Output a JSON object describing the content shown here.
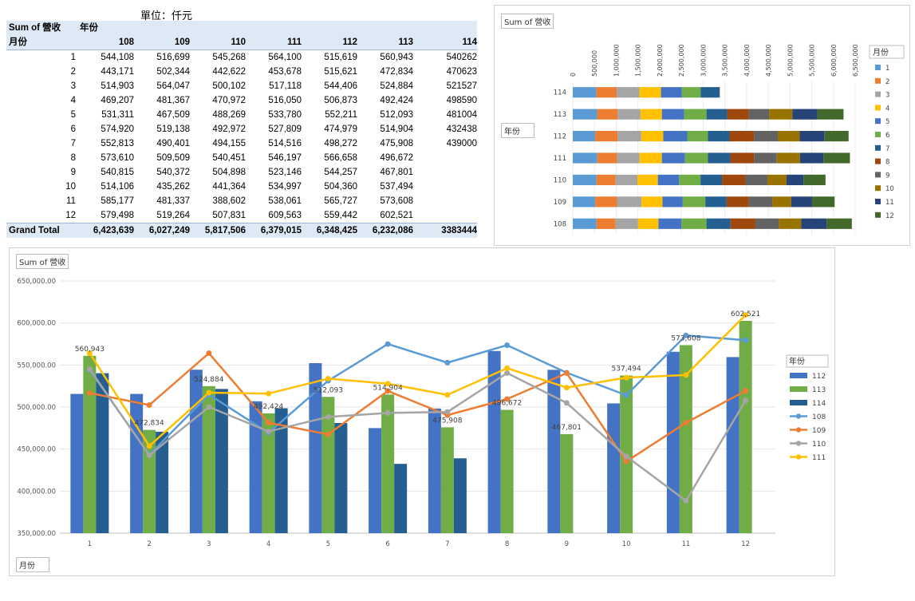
{
  "unit_label": "單位：仟元",
  "pivot": {
    "corner": "Sum of 營收",
    "col_field": "年份",
    "row_field": "月份",
    "years": [
      "108",
      "109",
      "110",
      "111",
      "112",
      "113",
      "114"
    ],
    "rows": [
      {
        "month": "1",
        "values": [
          "544,108",
          "516,699",
          "545,268",
          "564,100",
          "515,619",
          "560,943",
          "540262"
        ]
      },
      {
        "month": "2",
        "values": [
          "443,171",
          "502,344",
          "442,622",
          "453,678",
          "515,621",
          "472,834",
          "470623"
        ]
      },
      {
        "month": "3",
        "values": [
          "514,903",
          "564,047",
          "500,102",
          "517,118",
          "544,406",
          "524,884",
          "521527"
        ]
      },
      {
        "month": "4",
        "values": [
          "469,207",
          "481,367",
          "470,972",
          "516,050",
          "506,873",
          "492,424",
          "498590"
        ]
      },
      {
        "month": "5",
        "values": [
          "531,311",
          "467,509",
          "488,269",
          "533,780",
          "552,211",
          "512,093",
          "481004"
        ]
      },
      {
        "month": "6",
        "values": [
          "574,920",
          "519,138",
          "492,972",
          "527,809",
          "474,979",
          "514,904",
          "432438"
        ]
      },
      {
        "month": "7",
        "values": [
          "552,813",
          "490,401",
          "494,155",
          "514,516",
          "498,272",
          "475,908",
          "439000"
        ]
      },
      {
        "month": "8",
        "values": [
          "573,610",
          "509,509",
          "540,451",
          "546,197",
          "566,658",
          "496,672",
          ""
        ]
      },
      {
        "month": "9",
        "values": [
          "540,815",
          "540,372",
          "504,898",
          "523,146",
          "544,257",
          "467,801",
          ""
        ]
      },
      {
        "month": "10",
        "values": [
          "514,106",
          "435,262",
          "441,364",
          "534,997",
          "504,360",
          "537,494",
          ""
        ]
      },
      {
        "month": "11",
        "values": [
          "585,177",
          "481,337",
          "388,602",
          "538,061",
          "565,727",
          "573,608",
          ""
        ]
      },
      {
        "month": "12",
        "values": [
          "579,498",
          "519,264",
          "507,831",
          "609,563",
          "559,442",
          "602,521",
          ""
        ]
      }
    ],
    "grand_total_label": "Grand Total",
    "grand_total": [
      "6,423,639",
      "6,027,249",
      "5,817,506",
      "6,379,015",
      "6,348,425",
      "6,232,086",
      "3383444"
    ]
  },
  "chart_data": [
    {
      "type": "bar",
      "orientation": "horizontal",
      "stacked": true,
      "title_tag": "Sum of 營收",
      "axis_field_tag": "年份",
      "legend_title": "月份",
      "legend_position": "right",
      "categories": [
        "108",
        "109",
        "110",
        "111",
        "112",
        "113",
        "114"
      ],
      "xlim": [
        0,
        6500000
      ],
      "ticks": [
        "0",
        "500,000",
        "1,000,000",
        "1,500,000",
        "2,000,000",
        "2,500,000",
        "3,000,000",
        "3,500,000",
        "4,000,000",
        "4,500,000",
        "5,000,000",
        "5,500,000",
        "6,000,000",
        "6,500,000"
      ],
      "series": [
        {
          "name": "1",
          "color": "#5b9bd5",
          "values": [
            544108,
            516699,
            545268,
            564100,
            515619,
            560943,
            540262
          ]
        },
        {
          "name": "2",
          "color": "#ed7d31",
          "values": [
            443171,
            502344,
            442622,
            453678,
            515621,
            472834,
            470623
          ]
        },
        {
          "name": "3",
          "color": "#a5a5a5",
          "values": [
            514903,
            564047,
            500102,
            517118,
            544406,
            524884,
            521527
          ]
        },
        {
          "name": "4",
          "color": "#ffc000",
          "values": [
            469207,
            481367,
            470972,
            516050,
            506873,
            492424,
            498590
          ]
        },
        {
          "name": "5",
          "color": "#4472c4",
          "values": [
            531311,
            467509,
            488269,
            533780,
            552211,
            512093,
            481004
          ]
        },
        {
          "name": "6",
          "color": "#70ad47",
          "values": [
            574920,
            519138,
            492972,
            527809,
            474979,
            514904,
            432438
          ]
        },
        {
          "name": "7",
          "color": "#255e91",
          "values": [
            552813,
            490401,
            494155,
            514516,
            498272,
            475908,
            439000
          ]
        },
        {
          "name": "8",
          "color": "#9e480e",
          "values": [
            573610,
            509509,
            540451,
            546197,
            566658,
            496672,
            0
          ]
        },
        {
          "name": "9",
          "color": "#636363",
          "values": [
            540815,
            540372,
            504898,
            523146,
            544257,
            467801,
            0
          ]
        },
        {
          "name": "10",
          "color": "#997300",
          "values": [
            514106,
            435262,
            441364,
            534997,
            504360,
            537494,
            0
          ]
        },
        {
          "name": "11",
          "color": "#264478",
          "values": [
            585177,
            481337,
            388602,
            538061,
            565727,
            573608,
            0
          ]
        },
        {
          "name": "12",
          "color": "#43682b",
          "values": [
            579498,
            519264,
            507831,
            609563,
            559442,
            602521,
            0
          ]
        }
      ]
    },
    {
      "type": "bar",
      "combo": "bar+line",
      "title_tag": "Sum of 營收",
      "axis_field_tag": "月份",
      "legend_title": "年份",
      "legend_position": "right",
      "categories": [
        "1",
        "2",
        "3",
        "4",
        "5",
        "6",
        "7",
        "8",
        "9",
        "10",
        "11",
        "12"
      ],
      "ylim": [
        350000,
        650000
      ],
      "yticks": [
        "350,000.00",
        "400,000.00",
        "450,000.00",
        "500,000.00",
        "550,000.00",
        "600,000.00",
        "650,000.00"
      ],
      "bar_series": [
        {
          "name": "112",
          "color": "#4472c4",
          "values": [
            515619,
            515621,
            544406,
            506873,
            552211,
            474979,
            498272,
            566658,
            544257,
            504360,
            565727,
            559442
          ]
        },
        {
          "name": "113",
          "color": "#70ad47",
          "values": [
            560943,
            472834,
            524884,
            492424,
            512093,
            514904,
            475908,
            496672,
            467801,
            537494,
            573608,
            602521
          ],
          "data_labels": [
            "560,943",
            "472,834",
            "524,884",
            "492,424",
            "512,093",
            "514,904",
            "475,908",
            "496,672",
            "467,801",
            "537,494",
            "573,608",
            "602,521"
          ]
        },
        {
          "name": "114",
          "color": "#255e91",
          "values": [
            540262,
            470623,
            521527,
            498590,
            481004,
            432438,
            439000,
            null,
            null,
            null,
            null,
            null
          ]
        }
      ],
      "line_series": [
        {
          "name": "108",
          "color": "#5b9bd5",
          "values": [
            544108,
            443171,
            514903,
            469207,
            531311,
            574920,
            552813,
            573610,
            540815,
            514106,
            585177,
            579498
          ]
        },
        {
          "name": "109",
          "color": "#ed7d31",
          "values": [
            516699,
            502344,
            564047,
            481367,
            467509,
            519138,
            490401,
            509509,
            540372,
            435262,
            481337,
            519264
          ]
        },
        {
          "name": "110",
          "color": "#a5a5a5",
          "values": [
            545268,
            442622,
            500102,
            470972,
            488269,
            492972,
            494155,
            540451,
            504898,
            441364,
            388602,
            507831
          ]
        },
        {
          "name": "111",
          "color": "#ffc000",
          "values": [
            564100,
            453678,
            517118,
            516050,
            533780,
            527809,
            514516,
            546197,
            523146,
            534997,
            538061,
            609563
          ]
        }
      ]
    }
  ]
}
